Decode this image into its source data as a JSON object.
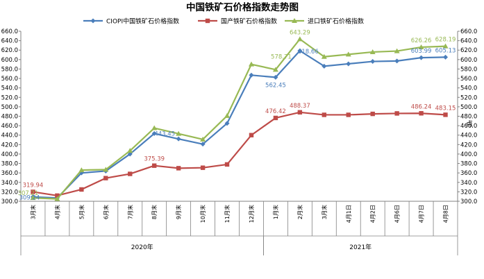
{
  "chart_data": {
    "type": "line",
    "title": "中国铁矿石价格指数走势图",
    "right_unit_label": "点",
    "categories": [
      "3月末",
      "4月末",
      "5月末",
      "6月末",
      "7月末",
      "8月末",
      "9月末",
      "10月末",
      "11月末",
      "12月末",
      "1月末",
      "2月末",
      "3月末",
      "4月1日",
      "4月2日",
      "4月6日",
      "4月7日",
      "4月8日"
    ],
    "year_groups": [
      {
        "label": "2020年",
        "start": 0,
        "end": 9
      },
      {
        "label": "2021年",
        "start": 10,
        "end": 17
      }
    ],
    "ylim": [
      300,
      660
    ],
    "yticks": [
      "300.0",
      "320.0",
      "340.0",
      "360.0",
      "380.0",
      "400.0",
      "420.0",
      "440.0",
      "460.0",
      "480.0",
      "500.0",
      "520.0",
      "540.0",
      "560.0",
      "580.0",
      "600.0",
      "620.0",
      "640.0",
      "660.0"
    ],
    "grid": false,
    "legend_position": "top",
    "series": [
      {
        "name": "CIOPI中国铁矿石价格指数",
        "color": "#4a7ebb",
        "marker": "diamond",
        "values": [
          309.24,
          307,
          360,
          364,
          400,
          443.45,
          432,
          421,
          465,
          567,
          562.45,
          618.66,
          586,
          591,
          596,
          597,
          603.99,
          605.13
        ],
        "labels": [
          {
            "index": 0,
            "text": "309.24"
          },
          {
            "index": 5,
            "text": "443.45"
          },
          {
            "index": 10,
            "text": "562.45"
          },
          {
            "index": 11,
            "text": "618.66"
          },
          {
            "index": 16,
            "text": "603.99"
          },
          {
            "index": 17,
            "text": "605.13"
          }
        ]
      },
      {
        "name": "国产铁矿石价格指数",
        "color": "#be4b48",
        "marker": "square",
        "values": [
          319.94,
          312,
          325,
          349,
          358,
          375.39,
          370,
          371,
          378,
          440,
          476.42,
          488.37,
          483,
          483,
          485,
          486,
          486.24,
          483.15
        ],
        "labels": [
          {
            "index": 0,
            "text": "319.94"
          },
          {
            "index": 5,
            "text": "375.39"
          },
          {
            "index": 10,
            "text": "476.42"
          },
          {
            "index": 11,
            "text": "488.37"
          },
          {
            "index": 16,
            "text": "486.24"
          },
          {
            "index": 17,
            "text": "483.15"
          }
        ]
      },
      {
        "name": "进口铁矿石价格指数",
        "color": "#98b954",
        "marker": "triangle",
        "values": [
          307.21,
          305,
          366,
          367,
          407,
          455,
          443,
          431,
          481,
          590,
          578.71,
          643.29,
          606,
          611,
          616,
          618,
          626.26,
          628.19
        ],
        "labels": [
          {
            "index": 0,
            "text": "307.21"
          },
          {
            "index": 10,
            "text": "578.71"
          },
          {
            "index": 11,
            "text": "643.29"
          },
          {
            "index": 16,
            "text": "626.26"
          },
          {
            "index": 17,
            "text": "628.19"
          }
        ]
      }
    ]
  }
}
